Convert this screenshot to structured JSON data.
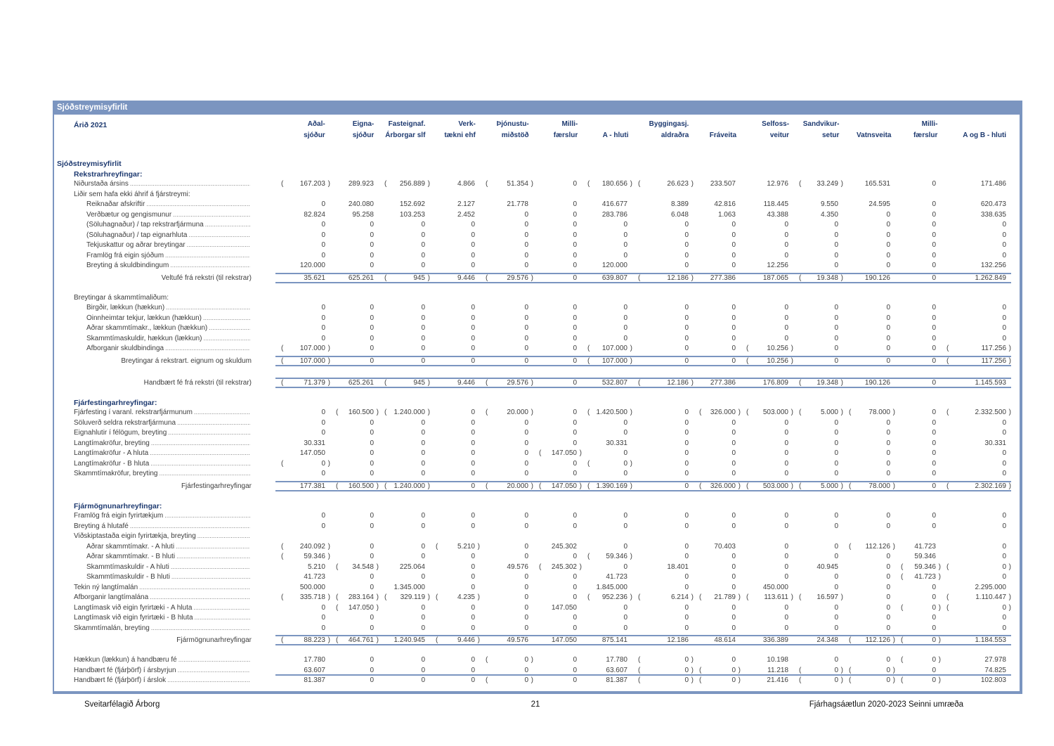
{
  "table": {
    "title": "Sjóðstreymisyfirlit",
    "year_label": "Árið 2021",
    "columns": [
      {
        "top": "Aðal-",
        "bottom": "sjóður"
      },
      {
        "top": "Eigna-",
        "bottom": "sjóður"
      },
      {
        "top": "Fasteignaf.",
        "bottom": "Árborgar slf"
      },
      {
        "top": "Verk-",
        "bottom": "tækni ehf"
      },
      {
        "top": "Þjónustu-",
        "bottom": "miðstöð"
      },
      {
        "top": "Milli-",
        "bottom": "færslur"
      },
      {
        "top": "",
        "bottom": "A - hluti"
      },
      {
        "top": "Byggingasj.",
        "bottom": "aldraðra"
      },
      {
        "top": "",
        "bottom": "Fráveita"
      },
      {
        "top": "Selfoss-",
        "bottom": "veitur"
      },
      {
        "top": "Sandvikur-",
        "bottom": "setur"
      },
      {
        "top": "",
        "bottom": "Vatnsveita"
      },
      {
        "top": "Milli-",
        "bottom": "færslur"
      },
      {
        "top": "",
        "bottom": "A og B - hluti"
      }
    ],
    "rows": [
      {
        "t": "title",
        "i": 0,
        "label": "Sjóðstreymisyfirlit"
      },
      {
        "t": "section",
        "i": 1,
        "label": "Rekstrarhreyfingar:"
      },
      {
        "t": "data",
        "i": 1,
        "dots": true,
        "label": "Niðurstaða ársins",
        "vals": [
          "(167.203)",
          "289.923",
          "(256.889)",
          "4.866",
          "(51.354)",
          "0",
          "(180.656)",
          "(26.623)",
          "233.507",
          "12.976",
          "(33.249)",
          "165.531",
          "0",
          "171.486"
        ]
      },
      {
        "t": "label",
        "i": 1,
        "dots": false,
        "label": "Liðir sem hafa ekki áhrif á fjárstreymi:"
      },
      {
        "t": "data",
        "i": 2,
        "dots": true,
        "label": "Reiknaðar afskriftir",
        "vals": [
          "0",
          "240.080",
          "152.692",
          "2.127",
          "21.778",
          "0",
          "416.677",
          "8.389",
          "42.816",
          "118.445",
          "9.550",
          "24.595",
          "0",
          "620.473"
        ]
      },
      {
        "t": "data",
        "i": 2,
        "dots": true,
        "label": "Verðbætur og gengismunur",
        "vals": [
          "82.824",
          "95.258",
          "103.253",
          "2.452",
          "0",
          "0",
          "283.786",
          "6.048",
          "1.063",
          "43.388",
          "4.350",
          "0",
          "0",
          "338.635"
        ]
      },
      {
        "t": "data",
        "i": 2,
        "dots": true,
        "label": "(Söluhagnaður) / tap rekstrarfjármuna",
        "vals": [
          "0",
          "0",
          "0",
          "0",
          "0",
          "0",
          "0",
          "0",
          "0",
          "0",
          "0",
          "0",
          "0",
          "0"
        ]
      },
      {
        "t": "data",
        "i": 2,
        "dots": true,
        "label": "(Söluhagnaður) / tap eignarhluta",
        "vals": [
          "0",
          "0",
          "0",
          "0",
          "0",
          "0",
          "0",
          "0",
          "0",
          "0",
          "0",
          "0",
          "0",
          "0"
        ]
      },
      {
        "t": "data",
        "i": 2,
        "dots": true,
        "label": "Tekjuskattur og aðrar breytingar",
        "vals": [
          "0",
          "0",
          "0",
          "0",
          "0",
          "0",
          "0",
          "0",
          "0",
          "0",
          "0",
          "0",
          "0",
          "0"
        ]
      },
      {
        "t": "data",
        "i": 2,
        "dots": true,
        "label": "Framlög frá eigin sjóðum",
        "vals": [
          "0",
          "0",
          "0",
          "0",
          "0",
          "0",
          "0",
          "0",
          "0",
          "0",
          "0",
          "0",
          "0",
          "0"
        ]
      },
      {
        "t": "data",
        "i": 2,
        "dots": true,
        "label": "Breyting á skuldbindingum",
        "vals": [
          "120.000",
          "0",
          "0",
          "0",
          "0",
          "0",
          "120.000",
          "0",
          "0",
          "12.256",
          "0",
          "0",
          "0",
          "132.256"
        ]
      },
      {
        "t": "total",
        "label": "Veltufé frá rekstri (til rekstrar)",
        "vals": [
          "35.621",
          "625.261",
          "(945)",
          "9.446",
          "(29.576)",
          "0",
          "639.807",
          "(12.186)",
          "277.386",
          "187.065",
          "(19.348)",
          "190.126",
          "0",
          "1.262.849"
        ]
      },
      {
        "t": "spacer"
      },
      {
        "t": "label",
        "i": 1,
        "dots": false,
        "label": "Breytingar á skammtímaliðum:"
      },
      {
        "t": "data",
        "i": 2,
        "dots": true,
        "label": "Birgðir, lækkun (hækkun)",
        "vals": [
          "0",
          "0",
          "0",
          "0",
          "0",
          "0",
          "0",
          "0",
          "0",
          "0",
          "0",
          "0",
          "0",
          "0"
        ]
      },
      {
        "t": "data",
        "i": 2,
        "dots": true,
        "label": "Óinnheimtar tekjur, lækkun (hækkun)",
        "vals": [
          "0",
          "0",
          "0",
          "0",
          "0",
          "0",
          "0",
          "0",
          "0",
          "0",
          "0",
          "0",
          "0",
          "0"
        ]
      },
      {
        "t": "data",
        "i": 2,
        "dots": true,
        "label": "Aðrar skammtímakr., lækkun (hækkun)",
        "vals": [
          "0",
          "0",
          "0",
          "0",
          "0",
          "0",
          "0",
          "0",
          "0",
          "0",
          "0",
          "0",
          "0",
          "0"
        ]
      },
      {
        "t": "data",
        "i": 2,
        "dots": true,
        "label": "Skammtímaskuldir, hækkun (lækkun)",
        "vals": [
          "0",
          "0",
          "0",
          "0",
          "0",
          "0",
          "0",
          "0",
          "0",
          "0",
          "0",
          "0",
          "0",
          "0"
        ]
      },
      {
        "t": "data",
        "i": 2,
        "dots": true,
        "label": "Afborganir skuldbindinga",
        "vals": [
          "(107.000)",
          "0",
          "0",
          "0",
          "0",
          "0",
          "(107.000)",
          "0",
          "0",
          "(10.256)",
          "0",
          "0",
          "0",
          "(117.256)"
        ]
      },
      {
        "t": "total",
        "label": "Breytingar á rekstrart. eignum og skuldum",
        "vals": [
          "(107.000)",
          "0",
          "0",
          "0",
          "0",
          "0",
          "(107.000)",
          "0",
          "0",
          "(10.256)",
          "0",
          "0",
          "0",
          "(117.256)"
        ]
      },
      {
        "t": "spacer"
      },
      {
        "t": "total",
        "label": "Handbært fé frá rekstri (til rekstrar)",
        "vals": [
          "(71.379)",
          "625.261",
          "(945)",
          "9.446",
          "(29.576)",
          "0",
          "532.807",
          "(12.186)",
          "277.386",
          "176.809",
          "(19.348)",
          "190.126",
          "0",
          "1.145.593"
        ]
      },
      {
        "t": "spacer"
      },
      {
        "t": "section",
        "i": 1,
        "label": "Fjárfestingarhreyfingar:"
      },
      {
        "t": "data",
        "i": 1,
        "dots": true,
        "label": "Fjárfesting í varanl. rekstrarfjármunum",
        "vals": [
          "0",
          "(160.500)",
          "(1.240.000)",
          "0",
          "(20.000)",
          "0",
          "(1.420.500)",
          "0",
          "(326.000)",
          "(503.000)",
          "(5.000)",
          "(78.000)",
          "0",
          "(2.332.500)"
        ]
      },
      {
        "t": "data",
        "i": 1,
        "dots": true,
        "label": "Söluverð seldra rekstrarfjármuna",
        "vals": [
          "0",
          "0",
          "0",
          "0",
          "0",
          "0",
          "0",
          "0",
          "0",
          "0",
          "0",
          "0",
          "0",
          "0"
        ]
      },
      {
        "t": "data",
        "i": 1,
        "dots": true,
        "label": "Eignahlutir í félögum, breyting",
        "vals": [
          "0",
          "0",
          "0",
          "0",
          "0",
          "0",
          "0",
          "0",
          "0",
          "0",
          "0",
          "0",
          "0",
          "0"
        ]
      },
      {
        "t": "data",
        "i": 1,
        "dots": true,
        "label": "Langtímakröfur, breyting",
        "vals": [
          "30.331",
          "0",
          "0",
          "0",
          "0",
          "0",
          "30.331",
          "0",
          "0",
          "0",
          "0",
          "0",
          "0",
          "30.331"
        ]
      },
      {
        "t": "data",
        "i": 1,
        "dots": true,
        "label": "Langtímakröfur - A hluta",
        "vals": [
          "147.050",
          "0",
          "0",
          "0",
          "0",
          "(147.050)",
          "0",
          "0",
          "0",
          "0",
          "0",
          "0",
          "0",
          "0"
        ]
      },
      {
        "t": "data",
        "i": 1,
        "dots": true,
        "label": "Langtímakröfur - B hluta",
        "vals": [
          "(0)",
          "0",
          "0",
          "0",
          "0",
          "0",
          "(0)",
          "0",
          "0",
          "0",
          "0",
          "0",
          "0",
          "0"
        ]
      },
      {
        "t": "data",
        "i": 1,
        "dots": true,
        "label": "Skammtímakröfur, breyting",
        "vals": [
          "0",
          "0",
          "0",
          "0",
          "0",
          "0",
          "0",
          "0",
          "0",
          "0",
          "0",
          "0",
          "0",
          "0"
        ]
      },
      {
        "t": "total",
        "label": "Fjárfestingarhreyfingar",
        "vals": [
          "177.381",
          "(160.500)",
          "(1.240.000)",
          "0",
          "(20.000)",
          "(147.050)",
          "(1.390.169)",
          "0",
          "(326.000)",
          "(503.000)",
          "(5.000)",
          "(78.000)",
          "0",
          "(2.302.169)"
        ]
      },
      {
        "t": "spacer"
      },
      {
        "t": "section",
        "i": 1,
        "label": "Fjármögnunarhreyfingar:"
      },
      {
        "t": "data",
        "i": 1,
        "dots": true,
        "label": "Framlög frá eigin fyrirtækjum",
        "vals": [
          "0",
          "0",
          "0",
          "0",
          "0",
          "0",
          "0",
          "0",
          "0",
          "0",
          "0",
          "0",
          "0",
          "0"
        ]
      },
      {
        "t": "data",
        "i": 1,
        "dots": true,
        "label": "Breyting á hlutafé",
        "vals": [
          "0",
          "0",
          "0",
          "0",
          "0",
          "0",
          "0",
          "0",
          "0",
          "0",
          "0",
          "0",
          "0",
          "0"
        ]
      },
      {
        "t": "label",
        "i": 1,
        "dots": true,
        "label": "Viðskiptastaða eigin fyrirtækja, breyting"
      },
      {
        "t": "data",
        "i": 2,
        "dots": true,
        "label": "Aðrar skammtímakr. - A hluti",
        "vals": [
          "(240.092)",
          "0",
          "0",
          "(5.210)",
          "0",
          "245.302",
          "0",
          "0",
          "70.403",
          "0",
          "0",
          "(112.126)",
          "41.723",
          "0"
        ]
      },
      {
        "t": "data",
        "i": 2,
        "dots": true,
        "label": "Aðrar skammtímakr. - B hluti",
        "vals": [
          "(59.346)",
          "0",
          "0",
          "0",
          "0",
          "0",
          "(59.346)",
          "0",
          "0",
          "0",
          "0",
          "0",
          "59.346",
          "0"
        ]
      },
      {
        "t": "data",
        "i": 2,
        "dots": true,
        "label": "Skammtímaskuldir - A hluti",
        "vals": [
          "5.210",
          "(34.548)",
          "225.064",
          "0",
          "49.576",
          "(245.302)",
          "0",
          "18.401",
          "0",
          "0",
          "40.945",
          "0",
          "(59.346)",
          "(0)"
        ]
      },
      {
        "t": "data",
        "i": 2,
        "dots": true,
        "label": "Skammtímaskuldir - B hluti",
        "vals": [
          "41.723",
          "0",
          "0",
          "0",
          "0",
          "0",
          "41.723",
          "0",
          "0",
          "0",
          "0",
          "0",
          "(41.723)",
          "0"
        ]
      },
      {
        "t": "data",
        "i": 1,
        "dots": true,
        "label": "Tekin ný langtímalán",
        "vals": [
          "500.000",
          "0",
          "1.345.000",
          "0",
          "0",
          "0",
          "1.845.000",
          "0",
          "0",
          "450.000",
          "0",
          "0",
          "0",
          "2.295.000"
        ]
      },
      {
        "t": "data",
        "i": 1,
        "dots": true,
        "label": "Afborganir langtímalána",
        "vals": [
          "(335.718)",
          "(283.164)",
          "(329.119)",
          "(4.235)",
          "0",
          "0",
          "(952.236)",
          "(6.214)",
          "(21.789)",
          "(113.611)",
          "(16.597)",
          "0",
          "0",
          "(1.110.447)"
        ]
      },
      {
        "t": "data",
        "i": 1,
        "dots": true,
        "label": "Langtímask við eigin fyrirtæki - A hluta",
        "vals": [
          "0",
          "(147.050)",
          "0",
          "0",
          "0",
          "147.050",
          "0",
          "0",
          "0",
          "0",
          "0",
          "0",
          "(0)",
          "(0)"
        ]
      },
      {
        "t": "data",
        "i": 1,
        "dots": true,
        "label": "Langtímask við eigin fyrirtæki - B hluta",
        "vals": [
          "0",
          "0",
          "0",
          "0",
          "0",
          "0",
          "0",
          "0",
          "0",
          "0",
          "0",
          "0",
          "0",
          "0"
        ]
      },
      {
        "t": "data",
        "i": 1,
        "dots": true,
        "label": "Skammtímalán, breyting",
        "vals": [
          "0",
          "0",
          "0",
          "0",
          "0",
          "0",
          "0",
          "0",
          "0",
          "0",
          "0",
          "0",
          "0",
          "0"
        ]
      },
      {
        "t": "total",
        "label": "Fjármögnunarhreyfingar",
        "vals": [
          "(88.223)",
          "(464.761)",
          "1.240.945",
          "(9.446)",
          "49.576",
          "147.050",
          "875.141",
          "12.186",
          "48.614",
          "336.389",
          "24.348",
          "(112.126)",
          "(0)",
          "1.184.553"
        ]
      },
      {
        "t": "spacer"
      },
      {
        "t": "data",
        "i": 1,
        "dots": true,
        "label": "Hækkun (lækkun) á handbæru fé",
        "vals": [
          "17.780",
          "0",
          "0",
          "0",
          "(0)",
          "0",
          "17.780",
          "(0)",
          "0",
          "10.198",
          "0",
          "0",
          "(0)",
          "27.978"
        ]
      },
      {
        "t": "data",
        "i": 1,
        "dots": true,
        "line": "bottom",
        "label": "Handbært fé (fjárþörf) í ársbyrjun",
        "vals": [
          "63.607",
          "0",
          "0",
          "0",
          "0",
          "0",
          "63.607",
          "(0)",
          "(0)",
          "11.218",
          "(0)",
          "(0)",
          "0",
          "74.825"
        ]
      },
      {
        "t": "data",
        "i": 1,
        "dots": true,
        "label": "Handbært fé (fjárþörf) í árslok",
        "vals": [
          "81.387",
          "0",
          "0",
          "0",
          "(0)",
          "0",
          "81.387",
          "(0)",
          "(0)",
          "21.416",
          "(0)",
          "(0)",
          "(0)",
          "102.803"
        ]
      }
    ]
  },
  "footer": {
    "left": "Sveitarfélagið Árborg",
    "page": "21",
    "right": "Fjárhagsáætlun 2020-2023 Seinni umræða"
  }
}
